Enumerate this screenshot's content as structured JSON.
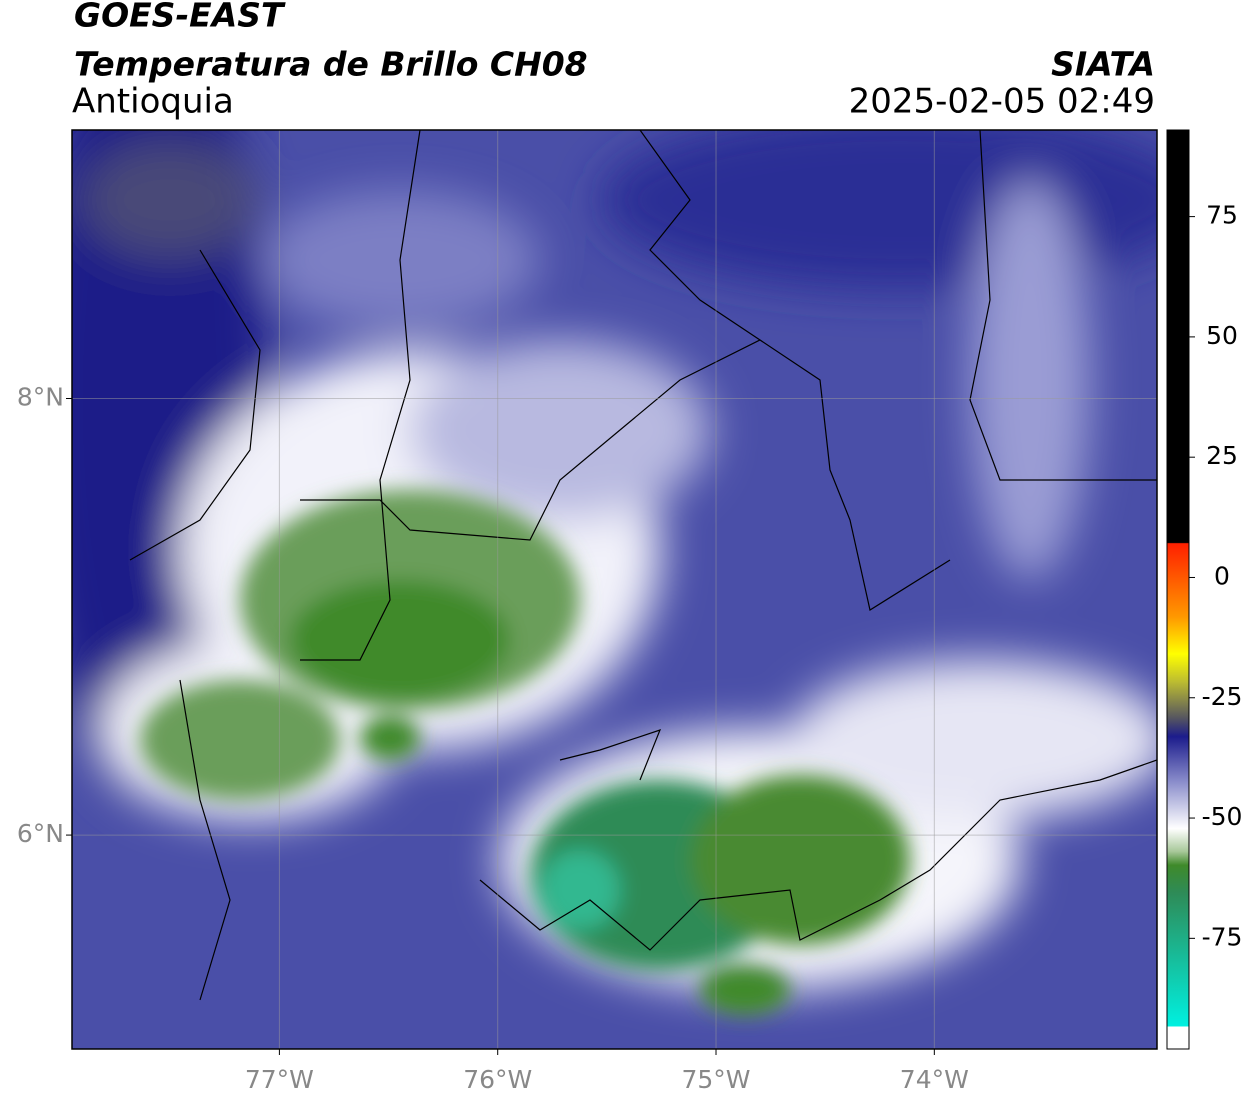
{
  "header": {
    "source": "GOES-EAST",
    "product": "Temperatura de Brillo CH08",
    "region": "Antioquia",
    "agency": "SIATA",
    "datetime": "2025-02-05 02:49"
  },
  "map": {
    "xlim": [
      -77.95,
      -72.98
    ],
    "ylim": [
      5.02,
      9.23
    ],
    "lat_ticks": [
      {
        "value": 8,
        "label": "8°N"
      },
      {
        "value": 6,
        "label": "6°N"
      }
    ],
    "lon_ticks": [
      {
        "value": -77,
        "label": "77°W"
      },
      {
        "value": -76,
        "label": "76°W"
      },
      {
        "value": -75,
        "label": "75°W"
      },
      {
        "value": -74,
        "label": "74°W"
      }
    ]
  },
  "colorbar": {
    "lim": [
      -98,
      93
    ],
    "ticks": [
      75,
      50,
      25,
      0,
      -25,
      -50,
      -75
    ]
  }
}
